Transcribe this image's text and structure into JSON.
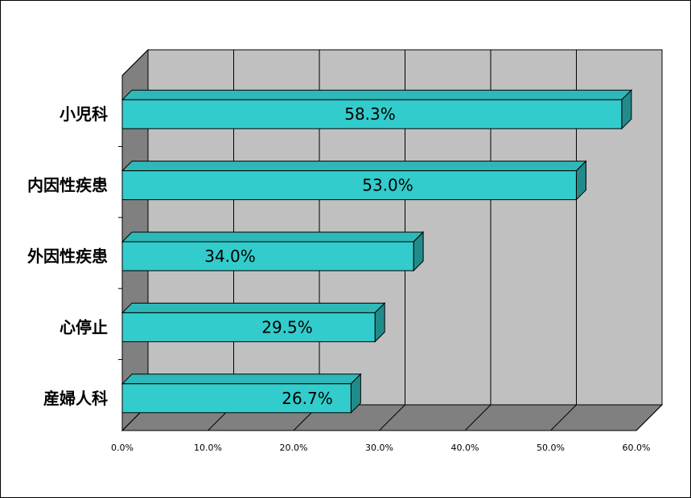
{
  "chart_data": {
    "type": "bar",
    "orientation": "horizontal",
    "style": "3d",
    "categories": [
      "小児科",
      "内因性疾患",
      "外因性疾患",
      "心停止",
      "産婦人科"
    ],
    "values": [
      58.3,
      53.0,
      34.0,
      29.5,
      26.7
    ],
    "value_labels": [
      "58.3%",
      "53.0%",
      "34.0%",
      "29.5%",
      "26.7%"
    ],
    "xlim": [
      0,
      60
    ],
    "x_ticks": [
      "0.0%",
      "10.0%",
      "20.0%",
      "30.0%",
      "40.0%",
      "50.0%",
      "60.0%"
    ],
    "title": "",
    "xlabel": "",
    "ylabel": "",
    "grid": true,
    "legend": "none",
    "colors": {
      "bar_front": "#33CCCC",
      "bar_top": "#2EB8B8",
      "bar_side": "#238A8A",
      "back_wall": "#C0C0C0",
      "floor": "#808080",
      "side_wall": "#808080",
      "grid": "#000000"
    }
  }
}
